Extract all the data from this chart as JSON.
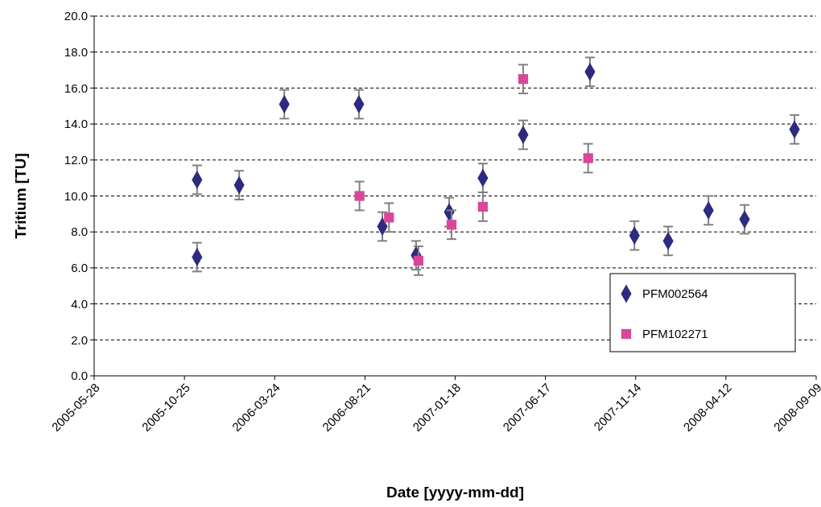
{
  "chart_data": {
    "type": "scatter",
    "xlabel": "Date [yyyy-mm-dd]",
    "ylabel": "Tritium [TU]",
    "series": [
      {
        "name": "PFM002564",
        "color": "#2e2a7f",
        "marker": "diamond",
        "x": [
          "2005-11-15",
          "2005-11-15",
          "2006-01-24",
          "2006-04-09",
          "2006-08-11",
          "2006-09-19",
          "2006-11-14",
          "2007-01-08",
          "2007-03-05",
          "2007-05-11",
          "2007-08-30",
          "2007-11-12",
          "2008-01-07",
          "2008-03-14",
          "2008-05-13",
          "2008-08-04"
        ],
        "values": [
          10.9,
          6.6,
          10.6,
          15.1,
          15.1,
          8.3,
          6.7,
          9.1,
          11.0,
          13.4,
          16.9,
          7.8,
          7.5,
          9.2,
          8.7,
          13.7
        ],
        "errors": [
          0.8,
          0.8,
          0.8,
          0.8,
          0.8,
          0.8,
          0.8,
          0.8,
          0.8,
          0.8,
          0.8,
          0.8,
          0.8,
          0.8,
          0.8,
          0.8
        ]
      },
      {
        "name": "PFM102271",
        "color": "#d9479a",
        "marker": "square",
        "x": [
          "2006-08-12",
          "2006-09-30",
          "2006-11-18",
          "2007-01-12",
          "2007-03-05",
          "2007-05-11",
          "2007-08-27"
        ],
        "values": [
          10.0,
          8.8,
          6.4,
          8.4,
          9.4,
          16.5,
          12.1
        ],
        "errors": [
          0.8,
          0.8,
          0.8,
          0.8,
          0.8,
          0.8,
          0.8
        ]
      }
    ],
    "xlim": [
      "2005-05-28",
      "2008-09-09"
    ],
    "xticks": [
      "2005-05-28",
      "2005-10-25",
      "2006-03-24",
      "2006-08-21",
      "2007-01-18",
      "2007-06-17",
      "2007-11-14",
      "2008-04-12",
      "2008-09-09"
    ],
    "ylim": [
      0,
      20
    ],
    "yticks": [
      {
        "value": 0,
        "label": "0.0"
      },
      {
        "value": 2,
        "label": "2.0"
      },
      {
        "value": 4,
        "label": "4.0"
      },
      {
        "value": 6,
        "label": "6.0"
      },
      {
        "value": 8,
        "label": "8.0"
      },
      {
        "value": 10,
        "label": "10.0"
      },
      {
        "value": 12,
        "label": "12.0"
      },
      {
        "value": 14,
        "label": "14.0"
      },
      {
        "value": 16,
        "label": "16.0"
      },
      {
        "value": 18,
        "label": "18.0"
      },
      {
        "value": 20,
        "label": "20.0"
      }
    ],
    "grid": "y",
    "line_style": "dashed",
    "legend": "bottom right"
  }
}
